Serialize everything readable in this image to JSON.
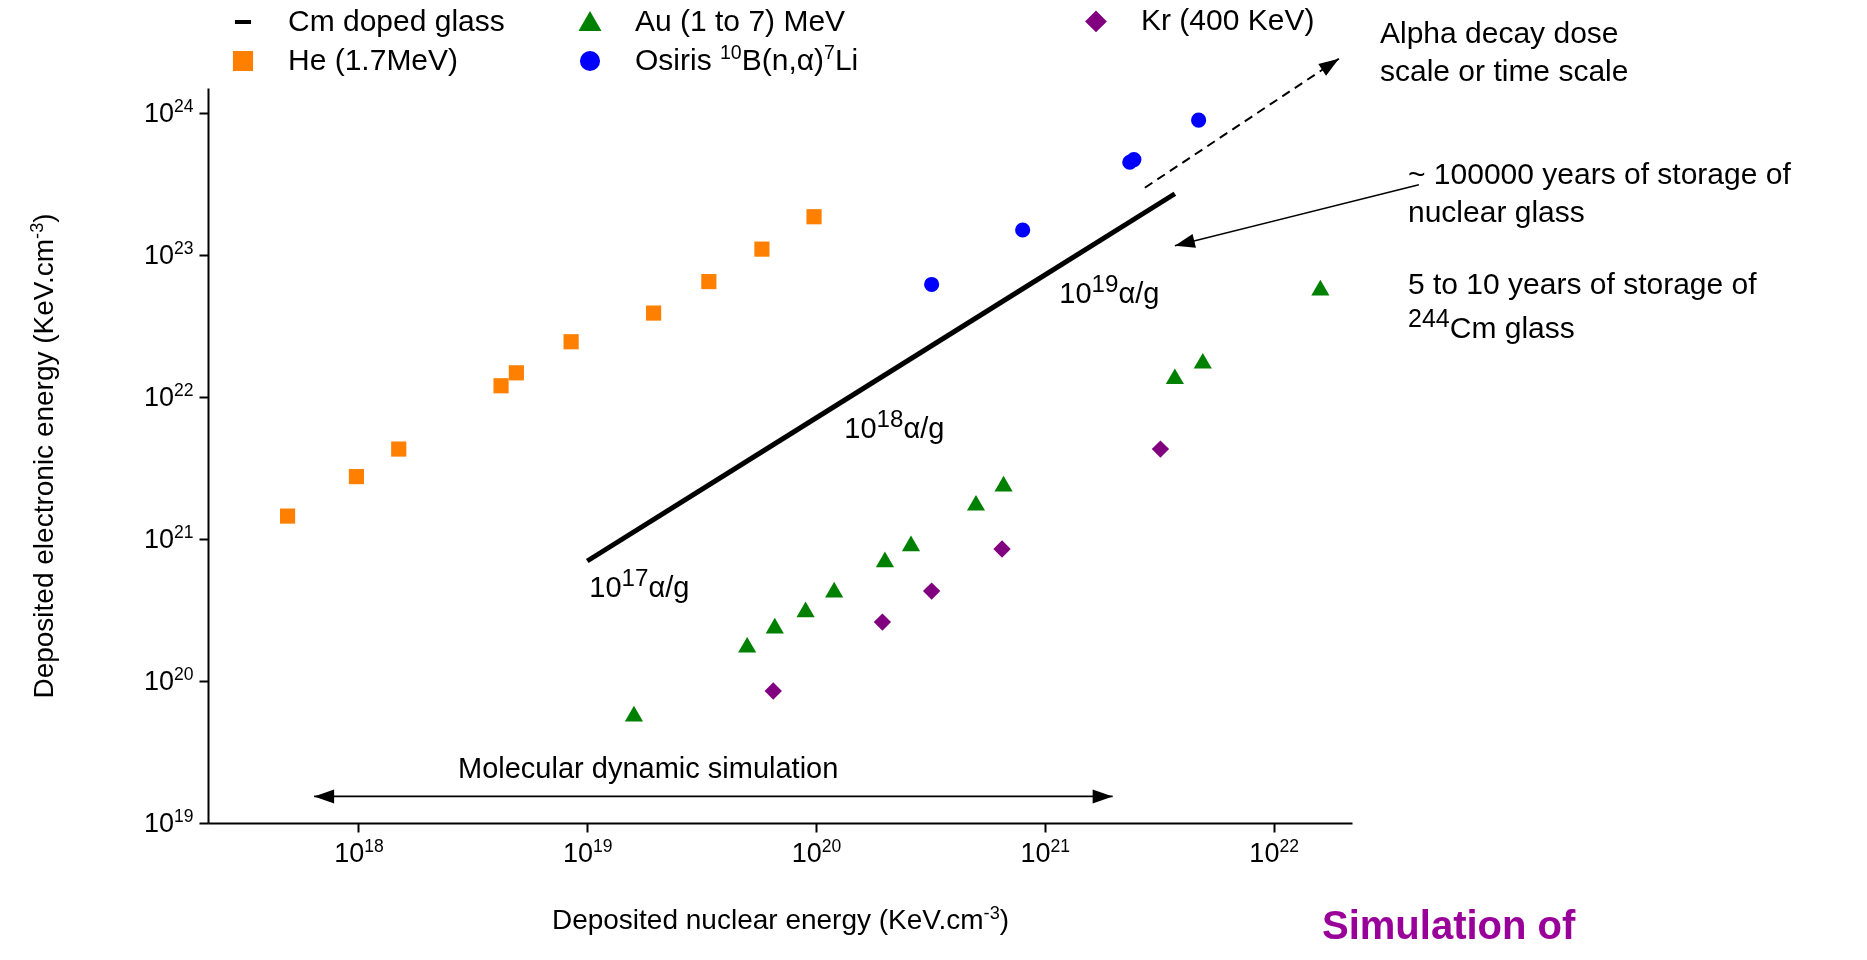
{
  "chart_data": {
    "type": "scatter",
    "xlabel": "Deposited nuclear energy (KeV.cm$^{-3}$)",
    "ylabel": "Deposited electronic energy (KeV.cm$^{-3}$)",
    "log": "xy",
    "grid": false,
    "legend": "top",
    "xlim": [
      2.2e+17,
      2.2e+22
    ],
    "ylim": [
      1e+19,
      1.5e+24
    ],
    "xticks": [
      {
        "value": 1e+18,
        "label": "10$^{18}$"
      },
      {
        "value": 1e+19,
        "label": "10$^{19}$"
      },
      {
        "value": 1e+20,
        "label": "10$^{20}$"
      },
      {
        "value": 1e+21,
        "label": "10$^{21}$"
      },
      {
        "value": 1e+22,
        "label": "10$^{22}$"
      }
    ],
    "yticks": [
      {
        "value": 1e+19,
        "label": "10$^{19}$"
      },
      {
        "value": 1e+20,
        "label": "10$^{20}$"
      },
      {
        "value": 1e+21,
        "label": "10$^{21}$"
      },
      {
        "value": 1e+22,
        "label": "10$^{22}$"
      },
      {
        "value": 1e+23,
        "label": "10$^{23}$"
      },
      {
        "value": 1e+24,
        "label": "10$^{24}$"
      }
    ],
    "series": [
      {
        "name": "Cm doped glass",
        "type": "line",
        "line_style": "solid",
        "color": "#000000",
        "x": [
          1e+19,
          3.7e+21
        ],
        "values": [
          7e+20,
          2.7e+23
        ]
      },
      {
        "name": "Au (1 to 7) MeV",
        "marker": "triangle",
        "color": "#008000",
        "x": [
          1.6e+19,
          5e+19,
          6.6e+19,
          9e+19,
          1.2e+20,
          2e+20,
          2.6e+20,
          5e+20,
          6.6e+20,
          3.7e+21,
          4.9e+21,
          1.6e+22
        ],
        "values": [
          5.9e+19,
          1.8e+20,
          2.45e+20,
          3.2e+20,
          4.4e+20,
          7.2e+20,
          9.3e+20,
          1.8e+21,
          2.45e+21,
          1.4e+22,
          1.8e+22,
          5.9e+22
        ]
      },
      {
        "name": "Kr (400 KeV)",
        "marker": "diamond",
        "color": "#800080",
        "x": [
          6.5e+19,
          1.95e+20,
          3.2e+20,
          6.5e+20,
          3.2e+21
        ],
        "values": [
          8.5e+19,
          2.6e+20,
          4.3e+20,
          8.5e+20,
          4.3e+21
        ]
      },
      {
        "name": "He (1.7MeV)",
        "marker": "square",
        "color": "#ff7f00",
        "x": [
          4.9e+17,
          9.8e+17,
          1.5e+18,
          4.2e+18,
          4.9e+18,
          8.5e+18,
          1.95e+19,
          3.4e+19,
          5.8e+19,
          9.8e+19
        ],
        "values": [
          1.45e+21,
          2.75e+21,
          4.3e+21,
          1.2e+22,
          1.48e+22,
          2.45e+22,
          3.9e+22,
          6.5e+22,
          1.1e+23,
          1.86e+23
        ]
      },
      {
        "name": "Osiris $^{10}$B(n,α)$^{7}$Li",
        "marker": "circle",
        "color": "#0000ff",
        "x": [
          3.2e+20,
          8e+20,
          2.35e+21,
          2.45e+21,
          4.7e+21
        ],
        "values": [
          6.2e+22,
          1.5e+23,
          4.5e+23,
          4.7e+23,
          8.9e+23
        ]
      }
    ],
    "annotations": [
      "10$^{17}$α/g",
      "10$^{18}$α/g",
      "10$^{19}$α/g",
      "Molecular dynamic simulation",
      "Alpha decay dose scale or time scale",
      "~ 100000 years of storage of nuclear glass",
      "5 to 10 years of storage of $^{244}$Cm glass",
      "Simulation of"
    ]
  }
}
